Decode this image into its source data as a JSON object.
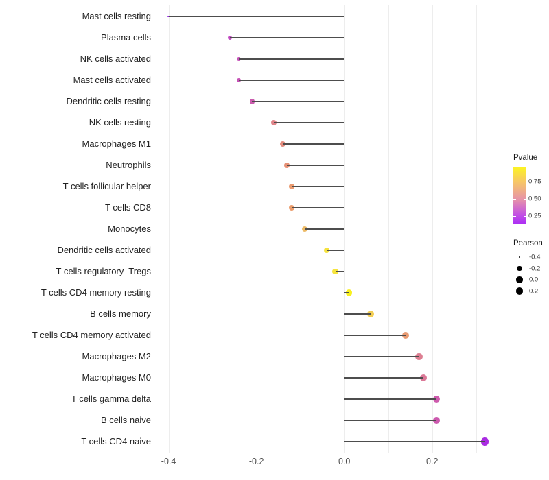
{
  "chart_data": {
    "type": "lollipop",
    "orientation": "horizontal",
    "title": "",
    "xlabel": "",
    "ylabel": "",
    "x_axis": {
      "tick_labels": [
        "-0.4",
        "-0.2",
        "0.0",
        "0.2"
      ],
      "tick_values": [
        -0.4,
        -0.2,
        0.0,
        0.2
      ],
      "grid_values": [
        -0.4,
        -0.3,
        -0.2,
        -0.1,
        0.0,
        0.1,
        0.2,
        0.3
      ],
      "lim": [
        -0.44,
        0.35
      ]
    },
    "baseline_x": 0.0,
    "points": [
      {
        "label": "Mast cells resting",
        "pearson": -0.4,
        "color": "#9326E0"
      },
      {
        "label": "Plasma cells",
        "pearson": -0.26,
        "color": "#C24BC2"
      },
      {
        "label": "NK cells activated",
        "pearson": -0.24,
        "color": "#C552B8"
      },
      {
        "label": "Mast cells activated",
        "pearson": -0.24,
        "color": "#C653B6"
      },
      {
        "label": "Dendritic cells resting",
        "pearson": -0.21,
        "color": "#CA5CAE"
      },
      {
        "label": "NK cells resting",
        "pearson": -0.16,
        "color": "#E0858A"
      },
      {
        "label": "Macrophages M1",
        "pearson": -0.14,
        "color": "#E38C7E"
      },
      {
        "label": "Neutrophils",
        "pearson": -0.13,
        "color": "#E79176"
      },
      {
        "label": "T cells follicular helper",
        "pearson": -0.12,
        "color": "#EA9A6F"
      },
      {
        "label": "T cells CD8",
        "pearson": -0.12,
        "color": "#EB9C6C"
      },
      {
        "label": "Monocytes",
        "pearson": -0.09,
        "color": "#EDBB67"
      },
      {
        "label": "Dendritic cells activated",
        "pearson": -0.04,
        "color": "#F5E23F"
      },
      {
        "label": "T cells regulatory  Tregs",
        "pearson": -0.02,
        "color": "#F6E43C"
      },
      {
        "label": "T cells CD4 memory resting",
        "pearson": 0.01,
        "color": "#F8F01F"
      },
      {
        "label": "B cells memory",
        "pearson": 0.06,
        "color": "#F2CE55"
      },
      {
        "label": "T cells CD4 memory activated",
        "pearson": 0.14,
        "color": "#E89A72"
      },
      {
        "label": "Macrophages M2",
        "pearson": 0.17,
        "color": "#DD7F92"
      },
      {
        "label": "Macrophages M0",
        "pearson": 0.18,
        "color": "#DB7897"
      },
      {
        "label": "T cells gamma delta",
        "pearson": 0.21,
        "color": "#CE5BAD"
      },
      {
        "label": "B cells naive",
        "pearson": 0.21,
        "color": "#CC58AE"
      },
      {
        "label": "T cells CD4 naive",
        "pearson": 0.32,
        "color": "#A92BE2"
      }
    ],
    "legend": {
      "pvalue": {
        "title": "Pvalue",
        "tick_labels": [
          "0.75",
          "0.50",
          "0.25"
        ],
        "tick_positions_pct": [
          26.2,
          56.0,
          85.7
        ],
        "gradient_stops": [
          {
            "pos": 0,
            "color": "#FCF521"
          },
          {
            "pos": 26,
            "color": "#F7C765"
          },
          {
            "pos": 56,
            "color": "#E795A7"
          },
          {
            "pos": 84,
            "color": "#C250E5"
          },
          {
            "pos": 100,
            "color": "#AB2DF5"
          }
        ]
      },
      "pearson": {
        "title": "Pearson",
        "items": [
          {
            "label": "-0.4",
            "value": -0.4
          },
          {
            "label": "-0.2",
            "value": -0.2
          },
          {
            "label": "0.0",
            "value": 0.0
          },
          {
            "label": "0.2",
            "value": 0.2
          }
        ]
      }
    },
    "colors": {
      "segment": "#4d4d4d",
      "grid": "#ededed",
      "axis_text": "#4d4d4d",
      "category_text": "#212121",
      "background": "#ffffff"
    }
  }
}
